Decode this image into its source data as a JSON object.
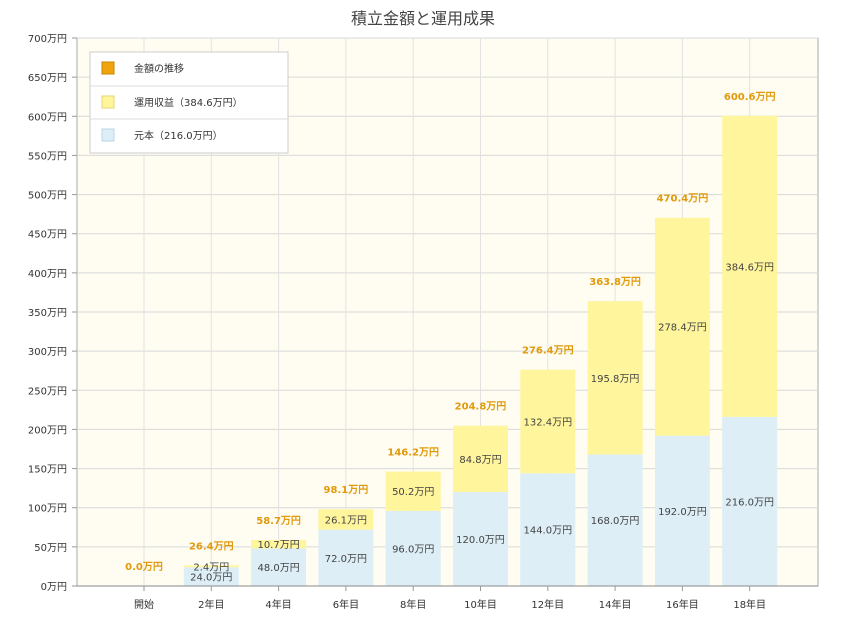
{
  "chart_data": {
    "type": "bar",
    "stacked": true,
    "title": "積立金額と運用成果",
    "categories": [
      "開始",
      "2年目",
      "4年目",
      "6年目",
      "8年目",
      "10年目",
      "12年目",
      "14年目",
      "16年目",
      "18年目"
    ],
    "ylim": [
      0,
      700
    ],
    "yticks": [
      "0万円",
      "50万円",
      "100万円",
      "150万円",
      "200万円",
      "250万円",
      "300万円",
      "350万円",
      "400万円",
      "450万円",
      "500万円",
      "550万円",
      "600万円",
      "650万円",
      "700万円"
    ],
    "ytick_values": [
      0,
      50,
      100,
      150,
      200,
      250,
      300,
      350,
      400,
      450,
      500,
      550,
      600,
      650,
      700
    ],
    "grid": true,
    "legend_position": "top-left",
    "series": [
      {
        "name": "元本（216.0万円）",
        "color": "#ddeef6",
        "values": [
          0,
          24.0,
          48.0,
          72.0,
          96.0,
          120.0,
          144.0,
          168.0,
          192.0,
          216.0
        ],
        "labels": [
          "",
          "24.0万円",
          "48.0万円",
          "72.0万円",
          "96.0万円",
          "120.0万円",
          "144.0万円",
          "168.0万円",
          "192.0万円",
          "216.0万円"
        ]
      },
      {
        "name": "運用収益（384.6万円）",
        "color": "#fff59d",
        "values": [
          0,
          2.4,
          10.7,
          26.1,
          50.2,
          84.8,
          132.4,
          195.8,
          278.4,
          384.6
        ],
        "labels": [
          "",
          "2.4万円",
          "10.7万円",
          "26.1万円",
          "50.2万円",
          "84.8万円",
          "132.4万円",
          "195.8万円",
          "278.4万円",
          "384.6万円"
        ]
      }
    ],
    "totals": {
      "name": "金額の推移",
      "color": "#f0a30a",
      "values": [
        0.0,
        26.4,
        58.7,
        98.1,
        146.2,
        204.8,
        276.4,
        363.8,
        470.4,
        600.6
      ],
      "labels": [
        "0.0万円",
        "26.4万円",
        "58.7万円",
        "98.1万円",
        "146.2万円",
        "204.8万円",
        "276.4万円",
        "363.8万円",
        "470.4万円",
        "600.6万円"
      ]
    },
    "legend": [
      {
        "label": "金額の推移",
        "color": "#f0a30a"
      },
      {
        "label": "運用収益（384.6万円）",
        "color": "#fff59d"
      },
      {
        "label": "元本（216.0万円）",
        "color": "#ddeef6"
      }
    ]
  }
}
